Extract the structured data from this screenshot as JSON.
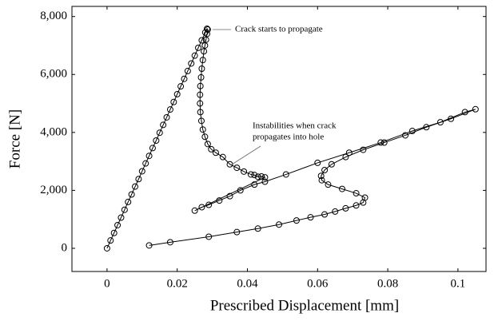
{
  "chart_data": {
    "type": "line",
    "xlabel": "Prescribed Displacement [mm]",
    "ylabel": "Force [N]",
    "annotations": [
      {
        "lines": [
          "Crack starts to propagate"
        ]
      },
      {
        "lines": [
          "Instabilities when crack",
          "propagates into hole"
        ]
      }
    ],
    "xlim": [
      -0.01,
      0.108
    ],
    "ylim": [
      -800,
      8350
    ],
    "xticks": [
      0,
      0.02,
      0.04,
      0.06,
      0.08,
      0.1
    ],
    "yticks": [
      0,
      {
        "value": 2000,
        "label": "2,000"
      },
      {
        "value": 4000,
        "label": "4,000"
      },
      {
        "value": 6000,
        "label": "6,000"
      },
      {
        "value": 8000,
        "label": "8,000"
      }
    ],
    "series": [
      {
        "color": "#000000",
        "x": [
          0,
          0.001,
          0.002,
          0.003,
          0.004,
          0.005,
          0.006,
          0.007,
          0.008,
          0.009,
          0.01,
          0.011,
          0.012,
          0.013,
          0.014,
          0.015,
          0.016,
          0.017,
          0.018,
          0.019,
          0.02,
          0.021,
          0.022,
          0.023,
          0.024,
          0.025,
          0.026,
          0.027,
          0.028,
          0.0285,
          0.0287,
          0.0285,
          0.0282,
          0.0279,
          0.0276,
          0.0273,
          0.027,
          0.0268,
          0.0266,
          0.0265,
          0.0265,
          0.0266,
          0.0269,
          0.0273,
          0.0279,
          0.0287,
          0.0297,
          0.031,
          0.033,
          0.035,
          0.037,
          0.039,
          0.041,
          0.042,
          0.043,
          0.044,
          0.045,
          0.025,
          0.027,
          0.029,
          0.032,
          0.035,
          0.038,
          0.042,
          0.045,
          0.051,
          0.06,
          0.069,
          0.078,
          0.087,
          0.095,
          0.102,
          0.105,
          0.098,
          0.091,
          0.085,
          0.079,
          0.073,
          0.068,
          0.064,
          0.062,
          0.061,
          0.0612,
          0.063,
          0.067,
          0.071,
          0.0735,
          0.073,
          0.071,
          0.068,
          0.065,
          0.062,
          0.058,
          0.054,
          0.049,
          0.043,
          0.037,
          0.029,
          0.018,
          0.012
        ],
        "values": [
          0,
          270,
          530,
          800,
          1060,
          1330,
          1600,
          1860,
          2130,
          2390,
          2660,
          2930,
          3190,
          3460,
          3720,
          3990,
          4260,
          4520,
          4790,
          5050,
          5320,
          5590,
          5850,
          6120,
          6380,
          6650,
          6920,
          7180,
          7450,
          7580,
          7550,
          7400,
          7200,
          7000,
          6800,
          6500,
          6200,
          5900,
          5600,
          5300,
          5000,
          4700,
          4400,
          4100,
          3850,
          3600,
          3420,
          3300,
          3150,
          2900,
          2780,
          2650,
          2550,
          2530,
          2470,
          2480,
          2450,
          1300,
          1420,
          1500,
          1650,
          1800,
          2000,
          2200,
          2300,
          2550,
          2950,
          3300,
          3650,
          4050,
          4350,
          4700,
          4800,
          4470,
          4180,
          3900,
          3650,
          3400,
          3150,
          2900,
          2700,
          2500,
          2350,
          2200,
          2050,
          1900,
          1750,
          1580,
          1480,
          1380,
          1270,
          1170,
          1070,
          960,
          820,
          680,
          560,
          400,
          210,
          100
        ]
      }
    ]
  }
}
